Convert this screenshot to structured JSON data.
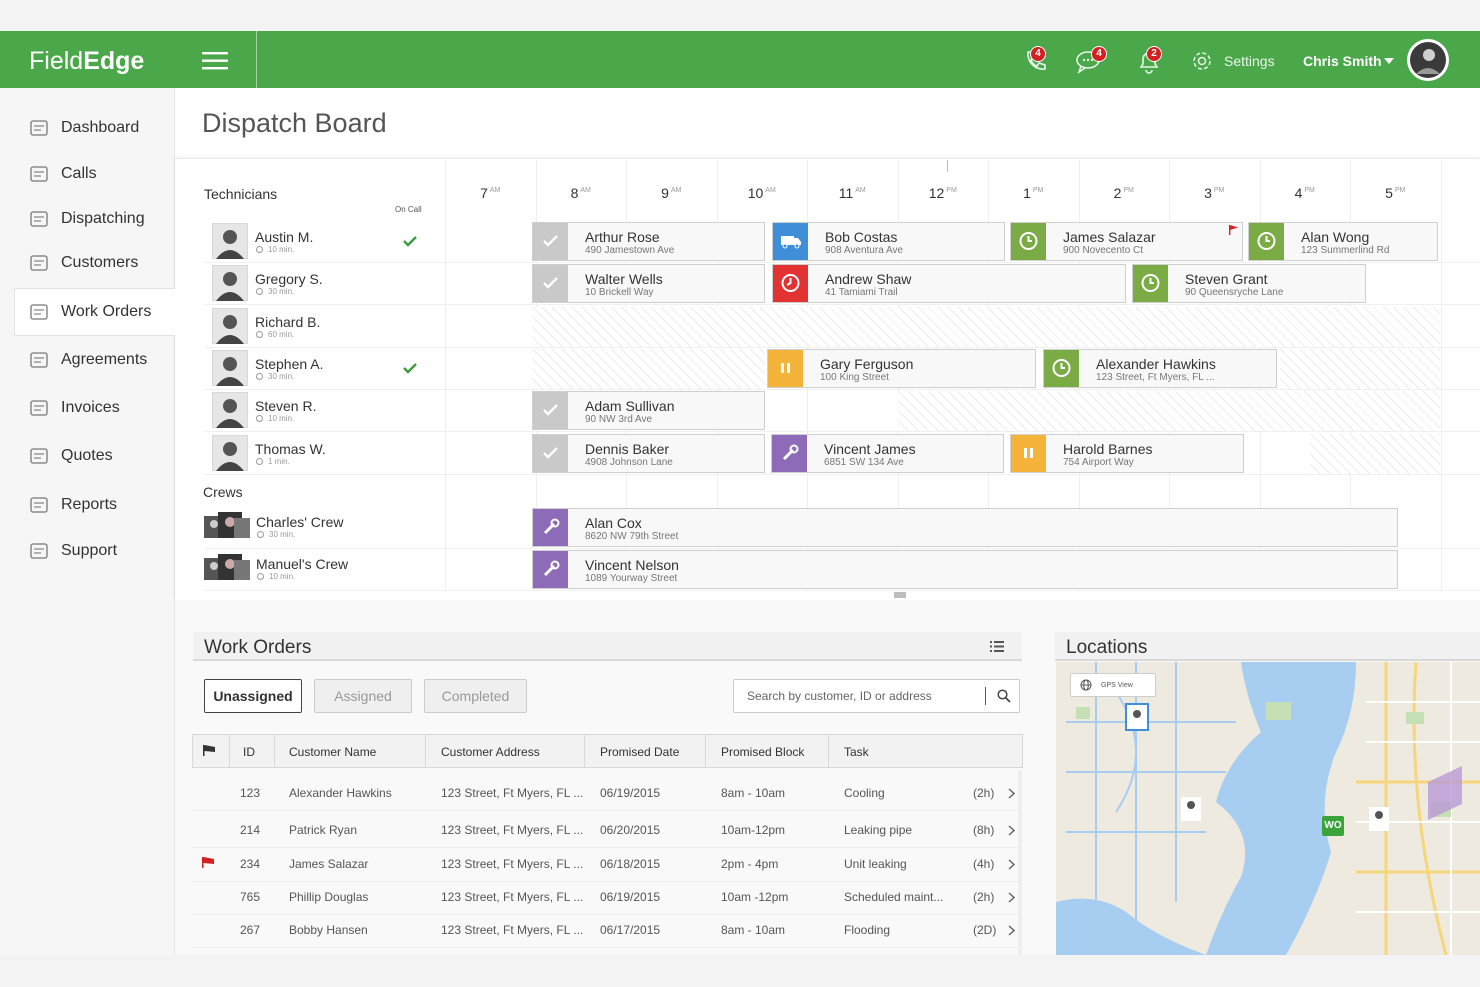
{
  "header": {
    "logo_light": "Field",
    "logo_bold": "Edge",
    "badges": [
      "4",
      "4",
      "2"
    ],
    "settings": "Settings",
    "user": "Chris Smith"
  },
  "sidebar": {
    "items": [
      "Dashboard",
      "Calls",
      "Dispatching",
      "Customers",
      "Work Orders",
      "Agreements",
      "Invoices",
      "Quotes",
      "Reports",
      "Support"
    ],
    "active_index": 4
  },
  "page_title": "Dispatch Board",
  "board": {
    "technicians_label": "Technicians",
    "on_call_label": "On Call",
    "crews_label": "Crews",
    "hours": [
      {
        "hour": "7",
        "period": "AM"
      },
      {
        "hour": "8",
        "period": "AM"
      },
      {
        "hour": "9",
        "period": "AM"
      },
      {
        "hour": "10",
        "period": "AM"
      },
      {
        "hour": "11",
        "period": "AM"
      },
      {
        "hour": "12",
        "period": "PM"
      },
      {
        "hour": "1",
        "period": "PM"
      },
      {
        "hour": "2",
        "period": "PM"
      },
      {
        "hour": "3",
        "period": "PM"
      },
      {
        "hour": "4",
        "period": "PM"
      },
      {
        "hour": "5",
        "period": "PM"
      }
    ],
    "technicians": [
      {
        "name": "Austin M.",
        "wait": "10 min.",
        "on_call": true,
        "jobs": [
          {
            "name": "Arthur Rose",
            "address": "490 Jamestown Ave",
            "icon": "check",
            "color": "#c9c9c9"
          },
          {
            "name": "Bob Costas",
            "address": "908 Aventura Ave",
            "icon": "truck",
            "color": "#3f8fd8"
          },
          {
            "name": "James Salazar",
            "address": "900 Novecento Ct",
            "icon": "clock",
            "color": "#7aab45",
            "flag": true
          },
          {
            "name": "Alan Wong",
            "address": "123 Summerlind Rd",
            "icon": "clock",
            "color": "#7aab45"
          }
        ]
      },
      {
        "name": "Gregory S.",
        "wait": "30 min.",
        "on_call": false,
        "jobs": [
          {
            "name": "Walter Wells",
            "address": "10 Brickell Way",
            "icon": "check",
            "color": "#c9c9c9"
          },
          {
            "name": "Andrew Shaw",
            "address": "41 Tamiami Trail",
            "icon": "alarm",
            "color": "#e23232"
          },
          {
            "name": "Steven Grant",
            "address": "90 Queensryche Lane",
            "icon": "clock",
            "color": "#7aab45"
          }
        ]
      },
      {
        "name": "Richard B.",
        "wait": "60 min.",
        "on_call": false,
        "jobs": []
      },
      {
        "name": "Stephen A.",
        "wait": "30 min.",
        "on_call": true,
        "jobs": [
          {
            "name": "Gary Ferguson",
            "address": "100 King Street",
            "icon": "pause",
            "color": "#f4b43a"
          },
          {
            "name": "Alexander Hawkins",
            "address": "123 Street, Ft Myers, FL ...",
            "icon": "clock",
            "color": "#7aab45"
          }
        ]
      },
      {
        "name": "Steven R.",
        "wait": "10 min.",
        "on_call": false,
        "jobs": [
          {
            "name": "Adam Sullivan",
            "address": "90 NW 3rd Ave",
            "icon": "check",
            "color": "#c9c9c9"
          }
        ]
      },
      {
        "name": "Thomas W.",
        "wait": "1 min.",
        "on_call": false,
        "jobs": [
          {
            "name": "Dennis Baker",
            "address": "4908 Johnson Lane",
            "icon": "check",
            "color": "#c9c9c9"
          },
          {
            "name": "Vincent James",
            "address": "6851 SW 134 Ave",
            "icon": "wrench",
            "color": "#8d6bb8"
          },
          {
            "name": "Harold Barnes",
            "address": "754 Airport Way",
            "icon": "pause",
            "color": "#f4b43a"
          }
        ]
      }
    ],
    "crews": [
      {
        "name": "Charles' Crew",
        "wait": "30 min.",
        "jobs": [
          {
            "name": "Alan Cox",
            "address": "8620 NW 79th Street",
            "icon": "wrench",
            "color": "#8d6bb8"
          }
        ]
      },
      {
        "name": "Manuel's Crew",
        "wait": "10 min.",
        "jobs": [
          {
            "name": "Vincent Nelson",
            "address": "1089 Yourway Street",
            "icon": "wrench",
            "color": "#8d6bb8"
          }
        ]
      }
    ]
  },
  "work_orders": {
    "title": "Work Orders",
    "tabs": [
      "Unassigned",
      "Assigned",
      "Completed"
    ],
    "active_tab": 0,
    "search_placeholder": "Search by customer, ID or address",
    "columns": [
      "ID",
      "Customer Name",
      "Customer Address",
      "Promised Date",
      "Promised Block",
      "Task"
    ],
    "rows": [
      [
        "123",
        "Alexander Hawkins",
        "123 Street, Ft Myers, FL ...",
        "06/19/2015",
        "8am - 10am",
        "Cooling",
        "(2h)"
      ],
      [
        "214",
        "Patrick Ryan",
        "123 Street, Ft Myers, FL ...",
        "06/20/2015",
        "10am-12pm",
        "Leaking pipe",
        "(8h)"
      ],
      [
        "234",
        "James Salazar",
        "123 Street, Ft Myers, FL ...",
        "06/18/2015",
        "2pm - 4pm",
        "Unit leaking",
        "(4h)"
      ],
      [
        "765",
        "Phillip Douglas",
        "123 Street, Ft Myers, FL ...",
        "06/19/2015",
        "10am -12pm",
        "Scheduled maint...",
        "(2h)"
      ],
      [
        "267",
        "Bobby Hansen",
        "123 Street, Ft Myers, FL ...",
        "06/17/2015",
        "8am - 10am",
        "Flooding",
        "(2D)"
      ]
    ],
    "flagged": [
      false,
      false,
      true,
      false,
      false
    ]
  },
  "locations": {
    "title": "Locations",
    "map_view": "GPS View",
    "marker": "WO"
  }
}
